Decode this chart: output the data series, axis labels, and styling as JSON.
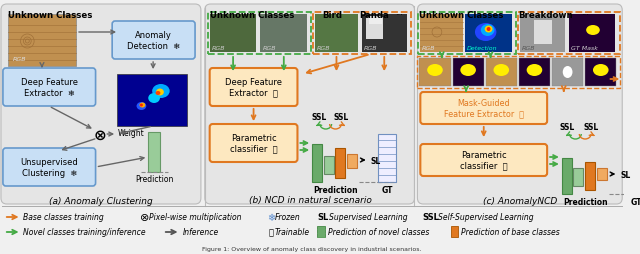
{
  "bg_color": "#f0f0f0",
  "section_a_title": "(a) Anomaly Clustering",
  "section_b_title": "(b) NCD in natural scenario",
  "section_c_title": "(c) AnomalyNCD",
  "border_green": "#44aa44",
  "border_orange": "#e07820",
  "box_blue_face": "#c8dff5",
  "box_blue_edge": "#6699cc",
  "box_orange_face": "#fde8c0",
  "box_orange_edge": "#e07820",
  "text_orange": "#e07820",
  "text_green": "#33aa33",
  "bar_novel_tall": "#7ab87a",
  "bar_novel_short": "#b0cfb0",
  "bar_base": "#e07820",
  "bar_base_short": "#f5aa60",
  "bar_gt_edge": "#7090c0",
  "wood_color": "#c09050",
  "wood_grain": "#a07038",
  "heatmap_bg": "#000090",
  "section_bg": "#e8e8e8",
  "gray_bg": "#e5e5e5"
}
